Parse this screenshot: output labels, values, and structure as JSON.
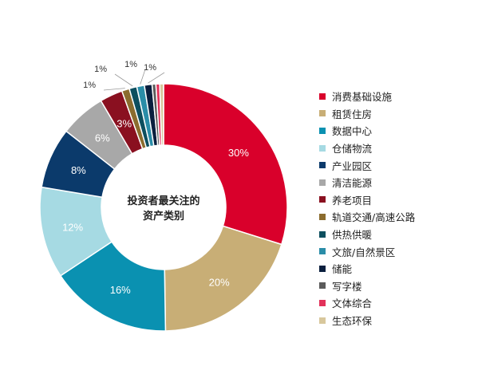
{
  "chart_data": {
    "type": "pie",
    "title": "",
    "center_label_lines": [
      "投资者最关注的",
      "资产类别"
    ],
    "legend_position": "right",
    "slices": [
      {
        "name": "消费基础设施",
        "value": 30,
        "label": "30%",
        "color": "#D9002B"
      },
      {
        "name": "租赁住房",
        "value": 20,
        "label": "20%",
        "color": "#C8AE76"
      },
      {
        "name": "数据中心",
        "value": 16,
        "label": "16%",
        "color": "#0A91B1"
      },
      {
        "name": "仓储物流",
        "value": 12,
        "label": "12%",
        "color": "#A6DAE3"
      },
      {
        "name": "产业园区",
        "value": 8,
        "label": "8%",
        "color": "#0B3A6B"
      },
      {
        "name": "清洁能源",
        "value": 6,
        "label": "6%",
        "color": "#A8A8A8"
      },
      {
        "name": "养老项目",
        "value": 3,
        "label": "3%",
        "color": "#8A1020"
      },
      {
        "name": "轨道交通/高速公路",
        "value": 1,
        "label": "1%",
        "color": "#8B6C2E"
      },
      {
        "name": "供热供暖",
        "value": 1,
        "label": "1%",
        "color": "#0D4F5F"
      },
      {
        "name": "文旅/自然景区",
        "value": 1,
        "label": "1%",
        "color": "#2A8DA8"
      },
      {
        "name": "储能",
        "value": 1,
        "label": "1%",
        "color": "#0A1F3E"
      },
      {
        "name": "写字楼",
        "value": 0.5,
        "label": "",
        "color": "#5B5B5B"
      },
      {
        "name": "文体综合",
        "value": 0.5,
        "label": "",
        "color": "#E2325A"
      },
      {
        "name": "生态环保",
        "value": 0.5,
        "label": "",
        "color": "#D8C79C"
      }
    ]
  }
}
